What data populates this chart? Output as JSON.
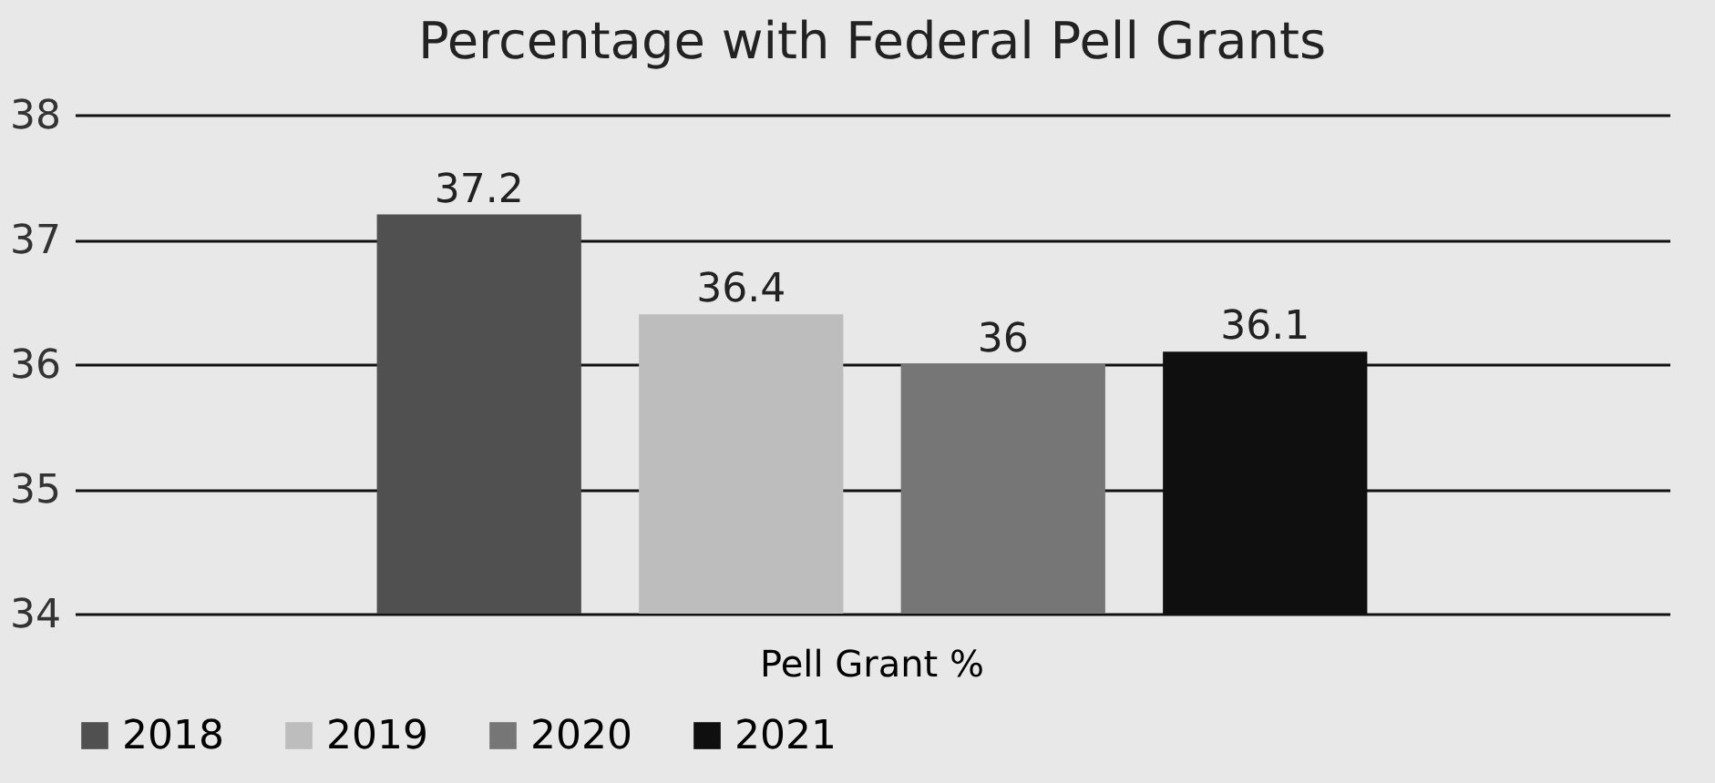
{
  "chart_data": {
    "type": "bar",
    "title": "Percentage with Federal Pell Grants",
    "categories": [
      "Pell Grant %"
    ],
    "series": [
      {
        "name": "2018",
        "color": "#505050",
        "values": [
          37.2
        ]
      },
      {
        "name": "2019",
        "color": "#bdbdbd",
        "values": [
          36.4
        ]
      },
      {
        "name": "2020",
        "color": "#767676",
        "values": [
          36
        ]
      },
      {
        "name": "2021",
        "color": "#0f0f0f",
        "values": [
          36.1
        ]
      }
    ],
    "ylim": [
      34,
      38
    ],
    "yticks": [
      34,
      35,
      36,
      37,
      38
    ],
    "grid": "y",
    "legend": "bottom",
    "data_labels": true
  }
}
